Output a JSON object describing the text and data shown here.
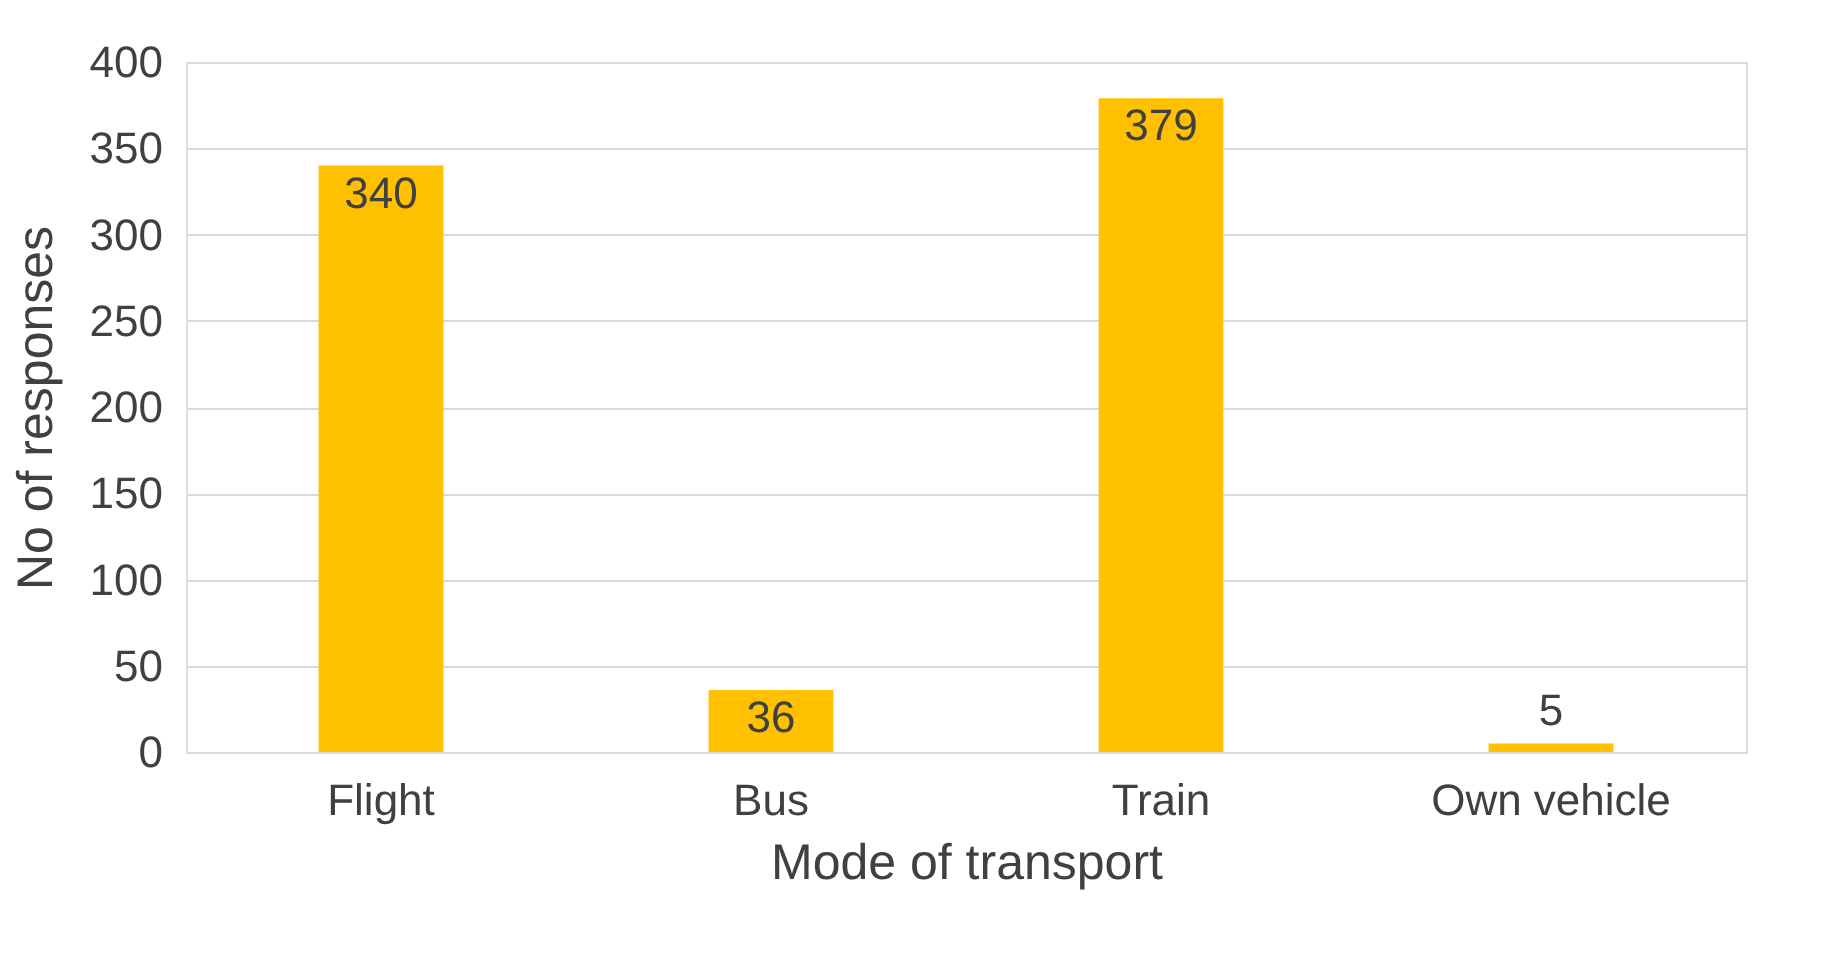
{
  "chart_data": {
    "type": "bar",
    "xlabel": "Mode of transport",
    "ylabel": "No of responses",
    "categories": [
      "Flight",
      "Bus",
      "Train",
      "Own vehicle"
    ],
    "values": [
      340,
      36,
      379,
      5
    ],
    "color": "#ffc000",
    "ylim": [
      0,
      400
    ],
    "yticks": [
      0,
      50,
      100,
      150,
      200,
      250,
      300,
      350,
      400
    ],
    "grid": "y",
    "data_labels": true
  }
}
